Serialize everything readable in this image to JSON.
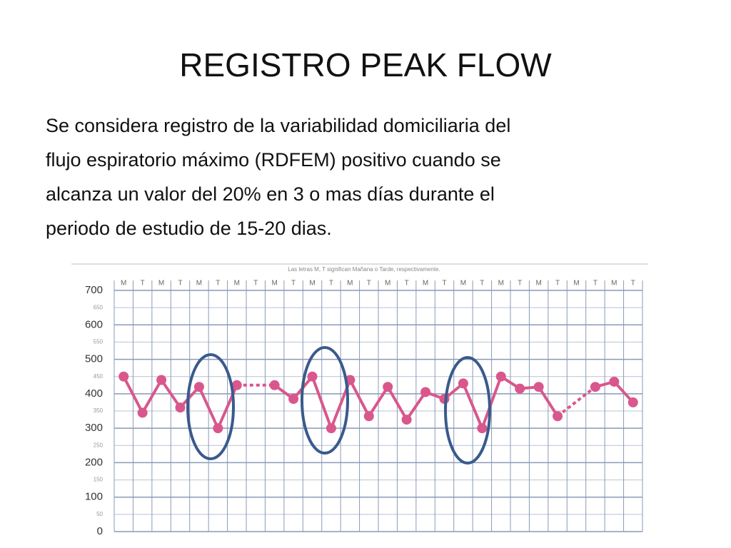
{
  "title": "REGISTRO PEAK FLOW",
  "body": [
    "Se considera registro de la variabilidad domiciliaria del",
    "flujo espiratorio máximo (RDFEM) positivo cuando se",
    "alcanza un valor del 20%  en 3 o mas días durante el",
    "periodo de estudio de 15-20 dias."
  ],
  "chart_data": {
    "type": "line",
    "subtitle": "Las letras M, T significan Mañana o Tarde, respectivamente.",
    "categories": [
      "M",
      "T",
      "M",
      "T",
      "M",
      "T",
      "M",
      "T",
      "M",
      "T",
      "M",
      "T",
      "M",
      "T",
      "M",
      "T",
      "M",
      "T",
      "M",
      "T",
      "M",
      "T",
      "M",
      "T",
      "M",
      "T",
      "M",
      "T"
    ],
    "series": [
      {
        "color": "#d9578c",
        "values": [
          450,
          345,
          440,
          360,
          420,
          300,
          425,
          null,
          425,
          385,
          450,
          300,
          440,
          335,
          420,
          325,
          405,
          385,
          430,
          300,
          450,
          415,
          420,
          335,
          null,
          420,
          435,
          375
        ]
      }
    ],
    "ylim": [
      0,
      700
    ],
    "yticks": [
      0,
      50,
      100,
      150,
      200,
      250,
      300,
      350,
      400,
      450,
      500,
      550,
      600,
      650,
      700
    ],
    "grid": true
  }
}
